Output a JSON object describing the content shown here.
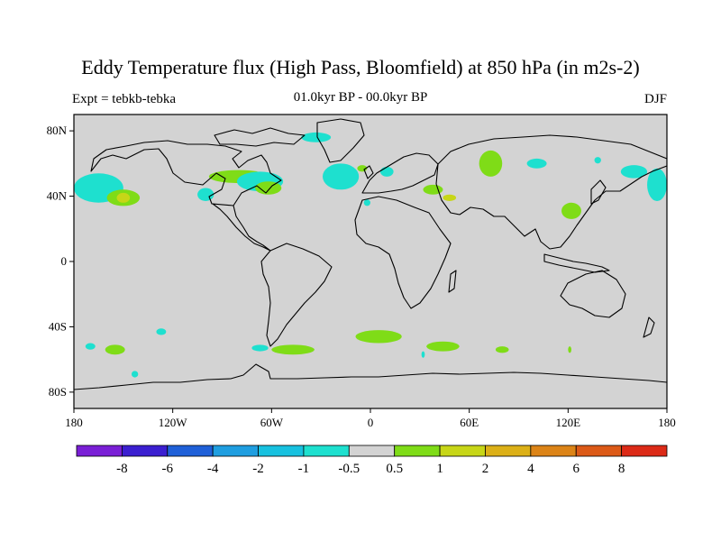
{
  "title": "Eddy Temperature flux (High Pass, Bloomfield) at 850 hPa (in m2s-2)",
  "left_label": "Expt = tebkb-tebka",
  "center_label": "01.0kyr BP - 00.0kyr BP",
  "right_label": "DJF",
  "map": {
    "projection": "cylindrical-equidistant",
    "lon_range": [
      -180,
      180
    ],
    "lat_range": [
      -90,
      90
    ],
    "background_color": "#d3d3d3",
    "lat_ticks": [
      {
        "value": 80,
        "label": "80N"
      },
      {
        "value": 40,
        "label": "40N"
      },
      {
        "value": 0,
        "label": "0"
      },
      {
        "value": -40,
        "label": "40S"
      },
      {
        "value": -80,
        "label": "80S"
      }
    ],
    "lon_ticks": [
      {
        "value": -180,
        "label": "180"
      },
      {
        "value": -120,
        "label": "120W"
      },
      {
        "value": -60,
        "label": "60W"
      },
      {
        "value": 0,
        "label": "0"
      },
      {
        "value": 60,
        "label": "60E"
      },
      {
        "value": 120,
        "label": "120E"
      },
      {
        "value": 180,
        "label": "180"
      }
    ]
  },
  "colorbar": {
    "labels": [
      "-8",
      "-6",
      "-4",
      "-2",
      "-1",
      "-0.5",
      "0.5",
      "1",
      "2",
      "4",
      "6",
      "8"
    ],
    "colors": [
      "#7a1fd6",
      "#3b1fd0",
      "#1f60d8",
      "#1f9ee0",
      "#17c1df",
      "#1ee0cf",
      "#d3d3d3",
      "#7fdc17",
      "#c7d617",
      "#dcb017",
      "#dc8417",
      "#dc5a17",
      "#dc2a17"
    ]
  },
  "patches": [
    {
      "lon": -165,
      "lat": 45,
      "rx": 15,
      "ry": 9,
      "color": "#1ee0cf"
    },
    {
      "lon": -150,
      "lat": 39,
      "rx": 10,
      "ry": 5,
      "color": "#7fdc17"
    },
    {
      "lon": -150,
      "lat": 39,
      "rx": 4,
      "ry": 3,
      "color": "#c7d617"
    },
    {
      "lon": -80,
      "lat": 52,
      "rx": 18,
      "ry": 4,
      "color": "#7fdc17"
    },
    {
      "lon": -67,
      "lat": 49,
      "rx": 14,
      "ry": 6,
      "color": "#1ee0cf"
    },
    {
      "lon": -100,
      "lat": 41,
      "rx": 5,
      "ry": 4,
      "color": "#1ee0cf"
    },
    {
      "lon": -62,
      "lat": 45,
      "rx": 8,
      "ry": 4,
      "color": "#7fdc17"
    },
    {
      "lon": -33,
      "lat": 76,
      "rx": 9,
      "ry": 3,
      "color": "#1ee0cf"
    },
    {
      "lon": -18,
      "lat": 52,
      "rx": 11,
      "ry": 8,
      "color": "#1ee0cf"
    },
    {
      "lon": -5,
      "lat": 57,
      "rx": 3,
      "ry": 2,
      "color": "#7fdc17"
    },
    {
      "lon": 10,
      "lat": 55,
      "rx": 4,
      "ry": 3,
      "color": "#1ee0cf"
    },
    {
      "lon": -2,
      "lat": 36,
      "rx": 2,
      "ry": 2,
      "color": "#1ee0cf"
    },
    {
      "lon": 38,
      "lat": 44,
      "rx": 6,
      "ry": 3,
      "color": "#7fdc17"
    },
    {
      "lon": 48,
      "lat": 39,
      "rx": 4,
      "ry": 2,
      "color": "#c7d617"
    },
    {
      "lon": 73,
      "lat": 60,
      "rx": 7,
      "ry": 8,
      "color": "#7fdc17"
    },
    {
      "lon": 101,
      "lat": 60,
      "rx": 6,
      "ry": 3,
      "color": "#1ee0cf"
    },
    {
      "lon": 122,
      "lat": 31,
      "rx": 6,
      "ry": 5,
      "color": "#7fdc17"
    },
    {
      "lon": 138,
      "lat": 62,
      "rx": 2,
      "ry": 2,
      "color": "#1ee0cf"
    },
    {
      "lon": 160,
      "lat": 55,
      "rx": 8,
      "ry": 4,
      "color": "#1ee0cf"
    },
    {
      "lon": 174,
      "lat": 47,
      "rx": 6,
      "ry": 10,
      "color": "#1ee0cf"
    },
    {
      "lon": -127,
      "lat": -43,
      "rx": 3,
      "ry": 2,
      "color": "#1ee0cf"
    },
    {
      "lon": -155,
      "lat": -54,
      "rx": 6,
      "ry": 3,
      "color": "#7fdc17"
    },
    {
      "lon": -170,
      "lat": -52,
      "rx": 3,
      "ry": 2,
      "color": "#1ee0cf"
    },
    {
      "lon": -47,
      "lat": -54,
      "rx": 13,
      "ry": 3,
      "color": "#7fdc17"
    },
    {
      "lon": -67,
      "lat": -53,
      "rx": 5,
      "ry": 2,
      "color": "#1ee0cf"
    },
    {
      "lon": 5,
      "lat": -46,
      "rx": 14,
      "ry": 4,
      "color": "#7fdc17"
    },
    {
      "lon": 44,
      "lat": -52,
      "rx": 10,
      "ry": 3,
      "color": "#7fdc17"
    },
    {
      "lon": 80,
      "lat": -54,
      "rx": 4,
      "ry": 2,
      "color": "#7fdc17"
    },
    {
      "lon": 121,
      "lat": -54,
      "rx": 1,
      "ry": 2,
      "color": "#7fdc17"
    },
    {
      "lon": -143,
      "lat": -69,
      "rx": 2,
      "ry": 2,
      "color": "#1ee0cf"
    },
    {
      "lon": 32,
      "lat": -57,
      "rx": 1,
      "ry": 2,
      "color": "#1ee0cf"
    }
  ]
}
